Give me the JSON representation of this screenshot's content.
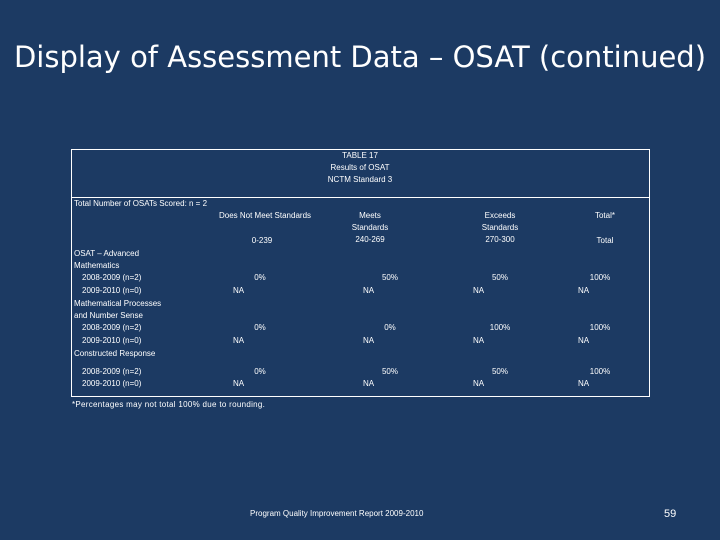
{
  "slide": {
    "title": "Display of Assessment Data – OSAT (continued)",
    "footnote": "*Percentages may not total 100% due to rounding.",
    "footer": "Program Quality Improvement Report 2009-2010",
    "page_number": "59"
  },
  "table": {
    "caption_line1": "TABLE 17",
    "caption_line2": "Results of OSAT",
    "caption_line3": "NCTM Standard 3",
    "total_label": "Total Number of OSATs Scored: n = 2",
    "headers": {
      "not_meet": "Does Not Meet Standards",
      "meets_l1": "Meets",
      "meets_l2": "Standards",
      "exceeds_l1": "Exceeds",
      "exceeds_l2": "Standards",
      "total": "Total*"
    },
    "ranges": {
      "not_meet": "0-239",
      "meets": "240-269",
      "exceeds": "270-300",
      "total": "Total"
    },
    "sections": [
      {
        "title_l1": "OSAT – Advanced",
        "title_l2": "Mathematics",
        "row1_label": "2008-2009 (n=2)",
        "row2_label": "2009-2010 (n=0)",
        "row1": [
          "0%",
          "50%",
          "50%",
          "100%"
        ],
        "row2": [
          "NA",
          "NA",
          "NA",
          "NA"
        ]
      },
      {
        "title_l1": "Mathematical Processes",
        "title_l2": "and Number Sense",
        "row1_label": "2008-2009 (n=2)",
        "row2_label": "2009-2010 (n=0)",
        "row1": [
          "0%",
          "0%",
          "100%",
          "100%"
        ],
        "row2": [
          "NA",
          "NA",
          "NA",
          "NA"
        ]
      },
      {
        "title_l1": "Constructed Response",
        "row1_label": "2008-2009 (n=2)",
        "row2_label": "2009-2010 (n=0)",
        "row1": [
          "0%",
          "50%",
          "50%",
          "100%"
        ],
        "row2": [
          "NA",
          "NA",
          "NA",
          "NA"
        ]
      }
    ]
  }
}
